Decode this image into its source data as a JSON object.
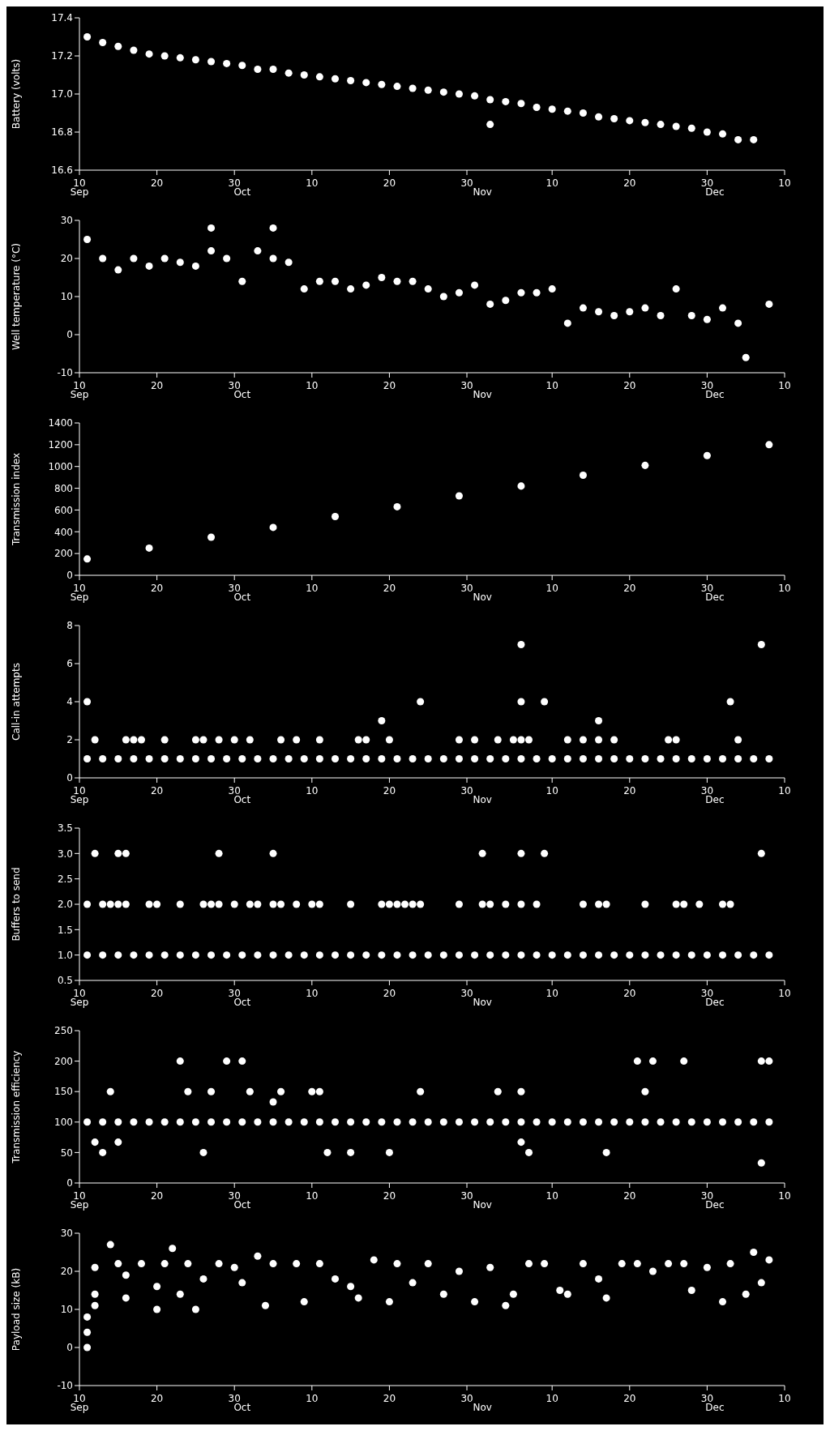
{
  "chart_data": [
    {
      "type": "scatter",
      "ylabel": "Battery (volts)",
      "marker": "circle",
      "xlim": [
        "--09-10",
        "--12-10"
      ],
      "xticks": [
        {
          "value": "--09-10",
          "label": "10"
        },
        {
          "value": "--09-20",
          "label": "20"
        },
        {
          "value": "--09-30",
          "label": "30"
        },
        {
          "value": "--10-10",
          "label": "10"
        },
        {
          "value": "--10-20",
          "label": "20"
        },
        {
          "value": "--10-30",
          "label": "30"
        },
        {
          "value": "--11-10",
          "label": "10"
        },
        {
          "value": "--11-20",
          "label": "20"
        },
        {
          "value": "--11-30",
          "label": "30"
        },
        {
          "value": "--12-10",
          "label": "10"
        }
      ],
      "x2lim": [
        "--09-10",
        "--12-10"
      ],
      "x2ticks": [
        {
          "value": "--09-10",
          "label": "Sep"
        },
        {
          "value": "--10-01",
          "label": "Oct"
        },
        {
          "value": "--11-01",
          "label": "Nov"
        },
        {
          "value": "--12-01",
          "label": "Dec"
        }
      ],
      "ylim": [
        16.6,
        17.4
      ],
      "yticks": [
        {
          "value": 16.6,
          "label": "16.6"
        },
        {
          "value": 16.8,
          "label": "16.8"
        },
        {
          "value": 17.0,
          "label": "17.0"
        },
        {
          "value": 17.2,
          "label": "17.2"
        },
        {
          "value": 17.4,
          "label": "17.4"
        }
      ],
      "series": [
        {
          "color": "#ffffff",
          "x": [
            "--09-11",
            "--09-13",
            "--09-15",
            "--09-17",
            "--09-19",
            "--09-21",
            "--09-23",
            "--09-25",
            "--09-27",
            "--09-29",
            "--10-01",
            "--10-03",
            "--10-05",
            "--10-07",
            "--10-09",
            "--10-11",
            "--10-13",
            "--10-15",
            "--10-17",
            "--10-19",
            "--10-21",
            "--10-23",
            "--10-25",
            "--10-27",
            "--10-29",
            "--10-31",
            "--11-02",
            "--11-02",
            "--11-04",
            "--11-06",
            "--11-08",
            "--11-10",
            "--11-12",
            "--11-14",
            "--11-16",
            "--11-18",
            "--11-20",
            "--11-22",
            "--11-24",
            "--11-26",
            "--11-28",
            "--11-30",
            "--12-02",
            "--12-04",
            "--12-06"
          ],
          "values": [
            17.3,
            17.27,
            17.25,
            17.23,
            17.21,
            17.2,
            17.19,
            17.18,
            17.17,
            17.16,
            17.15,
            17.13,
            17.13,
            17.11,
            17.1,
            17.09,
            17.08,
            17.07,
            17.06,
            17.05,
            17.04,
            17.03,
            17.02,
            17.01,
            17.0,
            16.99,
            16.97,
            16.84,
            16.96,
            16.95,
            16.93,
            16.92,
            16.91,
            16.9,
            16.88,
            16.87,
            16.86,
            16.85,
            16.84,
            16.83,
            16.82,
            16.8,
            16.79,
            16.76,
            16.76
          ]
        }
      ]
    },
    {
      "type": "scatter",
      "ylabel": "Well temperature (°C)",
      "marker": "circle",
      "xlim": [
        "--09-10",
        "--12-10"
      ],
      "xticks": [
        {
          "value": "--09-10",
          "label": "10"
        },
        {
          "value": "--09-20",
          "label": "20"
        },
        {
          "value": "--09-30",
          "label": "30"
        },
        {
          "value": "--10-10",
          "label": "10"
        },
        {
          "value": "--10-20",
          "label": "20"
        },
        {
          "value": "--10-30",
          "label": "30"
        },
        {
          "value": "--11-10",
          "label": "10"
        },
        {
          "value": "--11-20",
          "label": "20"
        },
        {
          "value": "--11-30",
          "label": "30"
        },
        {
          "value": "--12-10",
          "label": "10"
        }
      ],
      "x2lim": [
        "--09-10",
        "--12-10"
      ],
      "x2ticks": [
        {
          "value": "--09-10",
          "label": "Sep"
        },
        {
          "value": "--10-01",
          "label": "Oct"
        },
        {
          "value": "--11-01",
          "label": "Nov"
        },
        {
          "value": "--12-01",
          "label": "Dec"
        }
      ],
      "ylim": [
        -10,
        30
      ],
      "yticks": [
        -10,
        0,
        10,
        20,
        30
      ],
      "series": [
        {
          "color": "#ffffff",
          "x": [
            "--09-11",
            "--09-13",
            "--09-15",
            "--09-17",
            "--09-19",
            "--09-21",
            "--09-23",
            "--09-25",
            "--09-27",
            "--09-27",
            "--09-29",
            "--10-01",
            "--10-03",
            "--10-05",
            "--10-05",
            "--10-07",
            "--10-09",
            "--10-11",
            "--10-13",
            "--10-15",
            "--10-17",
            "--10-19",
            "--10-21",
            "--10-23",
            "--10-25",
            "--10-27",
            "--10-29",
            "--10-31",
            "--11-02",
            "--11-04",
            "--11-06",
            "--11-08",
            "--11-10",
            "--11-12",
            "--11-14",
            "--11-16",
            "--11-18",
            "--11-20",
            "--11-22",
            "--11-24",
            "--11-26",
            "--11-28",
            "--11-30",
            "--12-02",
            "--12-04",
            "--12-05",
            "--12-08"
          ],
          "values": [
            25,
            20,
            17,
            20,
            18,
            20,
            19,
            18,
            22,
            28,
            20,
            14,
            22,
            20,
            28,
            19,
            12,
            14,
            14,
            12,
            13,
            15,
            14,
            14,
            12,
            10,
            11,
            13,
            8,
            9,
            11,
            11,
            12,
            3,
            7,
            6,
            5,
            6,
            7,
            5,
            12,
            5,
            4,
            7,
            3,
            -6,
            8
          ]
        }
      ]
    },
    {
      "type": "scatter",
      "ylabel": "Transmission index",
      "marker": "circle",
      "xlim": [
        "--09-10",
        "--12-10"
      ],
      "xticks": [
        {
          "value": "--09-10",
          "label": "10"
        },
        {
          "value": "--09-20",
          "label": "20"
        },
        {
          "value": "--09-30",
          "label": "30"
        },
        {
          "value": "--10-10",
          "label": "10"
        },
        {
          "value": "--10-20",
          "label": "20"
        },
        {
          "value": "--10-30",
          "label": "30"
        },
        {
          "value": "--11-10",
          "label": "10"
        },
        {
          "value": "--11-20",
          "label": "20"
        },
        {
          "value": "--11-30",
          "label": "30"
        },
        {
          "value": "--12-10",
          "label": "10"
        }
      ],
      "x2lim": [
        "--09-10",
        "--12-10"
      ],
      "x2ticks": [
        {
          "value": "--09-10",
          "label": "Sep"
        },
        {
          "value": "--10-01",
          "label": "Oct"
        },
        {
          "value": "--11-01",
          "label": "Nov"
        },
        {
          "value": "--12-01",
          "label": "Dec"
        }
      ],
      "ylim": [
        0,
        1400
      ],
      "yticks": [
        0,
        200,
        400,
        600,
        800,
        1000,
        1200,
        1400
      ],
      "series": [
        {
          "color": "#ffffff",
          "x": [
            "--09-11",
            "--09-19",
            "--09-27",
            "--10-05",
            "--10-13",
            "--10-21",
            "--10-29",
            "--11-06",
            "--11-14",
            "--11-22",
            "--11-30",
            "--12-08"
          ],
          "values": [
            150,
            250,
            350,
            440,
            540,
            630,
            730,
            820,
            920,
            1010,
            1100,
            1200
          ]
        }
      ]
    },
    {
      "type": "scatter",
      "ylabel": "Call-in attempts",
      "marker": "circle",
      "xlim": [
        "--09-10",
        "--12-10"
      ],
      "xticks": [
        {
          "value": "--09-10",
          "label": "10"
        },
        {
          "value": "--09-20",
          "label": "20"
        },
        {
          "value": "--09-30",
          "label": "30"
        },
        {
          "value": "--10-10",
          "label": "10"
        },
        {
          "value": "--10-20",
          "label": "20"
        },
        {
          "value": "--10-30",
          "label": "30"
        },
        {
          "value": "--11-10",
          "label": "10"
        },
        {
          "value": "--11-20",
          "label": "20"
        },
        {
          "value": "--11-30",
          "label": "30"
        },
        {
          "value": "--12-10",
          "label": "10"
        }
      ],
      "x2lim": [
        "--09-10",
        "--12-10"
      ],
      "x2ticks": [
        {
          "value": "--09-10",
          "label": "Sep"
        },
        {
          "value": "--10-01",
          "label": "Oct"
        },
        {
          "value": "--11-01",
          "label": "Nov"
        },
        {
          "value": "--12-01",
          "label": "Dec"
        }
      ],
      "ylim": [
        0,
        8
      ],
      "yticks": [
        0,
        2,
        4,
        6,
        8
      ],
      "series": [
        {
          "color": "#ffffff",
          "x": [
            "--09-11",
            "--09-13",
            "--09-15",
            "--09-17",
            "--09-19",
            "--09-21",
            "--09-23",
            "--09-25",
            "--09-27",
            "--09-29",
            "--10-01",
            "--10-03",
            "--10-05",
            "--10-07",
            "--10-09",
            "--10-11",
            "--10-13",
            "--10-15",
            "--10-17",
            "--10-19",
            "--10-21",
            "--10-23",
            "--10-25",
            "--10-27",
            "--10-29",
            "--10-31",
            "--11-02",
            "--11-04",
            "--11-06",
            "--11-08",
            "--11-10",
            "--11-12",
            "--11-14",
            "--11-16",
            "--11-18",
            "--11-20",
            "--11-22",
            "--11-24",
            "--11-26",
            "--11-28",
            "--11-30",
            "--12-02",
            "--12-04",
            "--12-06",
            "--12-08"
          ],
          "values": [
            1,
            1,
            1,
            1,
            1,
            1,
            1,
            1,
            1,
            1,
            1,
            1,
            1,
            1,
            1,
            1,
            1,
            1,
            1,
            1,
            1,
            1,
            1,
            1,
            1,
            1,
            1,
            1,
            1,
            1,
            1,
            1,
            1,
            1,
            1,
            1,
            1,
            1,
            1,
            1,
            1,
            1,
            1,
            1,
            1
          ]
        },
        {
          "color": "#ffffff",
          "x": [
            "--09-11",
            "--09-12",
            "--09-16",
            "--09-17",
            "--09-18",
            "--09-21",
            "--09-25",
            "--09-26",
            "--09-28",
            "--09-30",
            "--10-02",
            "--10-06",
            "--10-08",
            "--10-11",
            "--10-16",
            "--10-17",
            "--10-19",
            "--10-20",
            "--10-24",
            "--10-29",
            "--10-31",
            "--11-03",
            "--11-05",
            "--11-06",
            "--11-06",
            "--11-06",
            "--11-07",
            "--11-09",
            "--11-12",
            "--11-14",
            "--11-16",
            "--11-16",
            "--11-18",
            "--11-25",
            "--11-26",
            "--12-03",
            "--12-04",
            "--12-07"
          ],
          "values": [
            4,
            2,
            2,
            2,
            2,
            2,
            2,
            2,
            2,
            2,
            2,
            2,
            2,
            2,
            2,
            2,
            3,
            2,
            4,
            2,
            2,
            2,
            2,
            7,
            4,
            2,
            2,
            4,
            2,
            2,
            3,
            2,
            2,
            2,
            2,
            4,
            2,
            7
          ]
        }
      ]
    },
    {
      "type": "scatter",
      "ylabel": "Buffers to send",
      "marker": "circle",
      "xlim": [
        "--09-10",
        "--12-10"
      ],
      "xticks": [
        {
          "value": "--09-10",
          "label": "10"
        },
        {
          "value": "--09-20",
          "label": "20"
        },
        {
          "value": "--09-30",
          "label": "30"
        },
        {
          "value": "--10-10",
          "label": "10"
        },
        {
          "value": "--10-20",
          "label": "20"
        },
        {
          "value": "--10-30",
          "label": "30"
        },
        {
          "value": "--11-10",
          "label": "10"
        },
        {
          "value": "--11-20",
          "label": "20"
        },
        {
          "value": "--11-30",
          "label": "30"
        },
        {
          "value": "--12-10",
          "label": "10"
        }
      ],
      "x2lim": [
        "--09-10",
        "--12-10"
      ],
      "x2ticks": [
        {
          "value": "--09-10",
          "label": "Sep"
        },
        {
          "value": "--10-01",
          "label": "Oct"
        },
        {
          "value": "--11-01",
          "label": "Nov"
        },
        {
          "value": "--12-01",
          "label": "Dec"
        }
      ],
      "ylim": [
        0.5,
        3.5
      ],
      "yticks": [
        {
          "value": 0.5,
          "label": "0.5"
        },
        {
          "value": 1,
          "label": "1.0"
        },
        {
          "value": 1.5,
          "label": "1.5"
        },
        {
          "value": 2,
          "label": "2.0"
        },
        {
          "value": 2.5,
          "label": "2.5"
        },
        {
          "value": 3,
          "label": "3.0"
        },
        {
          "value": 3.5,
          "label": "3.5"
        }
      ],
      "series": [
        {
          "color": "#ffffff",
          "x": [
            "--09-11",
            "--09-13",
            "--09-15",
            "--09-17",
            "--09-19",
            "--09-21",
            "--09-23",
            "--09-25",
            "--09-27",
            "--09-29",
            "--10-01",
            "--10-03",
            "--10-05",
            "--10-07",
            "--10-09",
            "--10-11",
            "--10-13",
            "--10-15",
            "--10-17",
            "--10-19",
            "--10-21",
            "--10-23",
            "--10-25",
            "--10-27",
            "--10-29",
            "--10-31",
            "--11-02",
            "--11-04",
            "--11-06",
            "--11-08",
            "--11-10",
            "--11-12",
            "--11-14",
            "--11-16",
            "--11-18",
            "--11-20",
            "--11-22",
            "--11-24",
            "--11-26",
            "--11-28",
            "--11-30",
            "--12-02",
            "--12-04",
            "--12-06",
            "--12-08"
          ],
          "values": [
            1,
            1,
            1,
            1,
            1,
            1,
            1,
            1,
            1,
            1,
            1,
            1,
            1,
            1,
            1,
            1,
            1,
            1,
            1,
            1,
            1,
            1,
            1,
            1,
            1,
            1,
            1,
            1,
            1,
            1,
            1,
            1,
            1,
            1,
            1,
            1,
            1,
            1,
            1,
            1,
            1,
            1,
            1,
            1,
            1
          ]
        },
        {
          "color": "#ffffff",
          "x": [
            "--09-11",
            "--09-12",
            "--09-13",
            "--09-14",
            "--09-15",
            "--09-15",
            "--09-16",
            "--09-16",
            "--09-19",
            "--09-20",
            "--09-23",
            "--09-26",
            "--09-27",
            "--09-28",
            "--09-28",
            "--09-30",
            "--10-02",
            "--10-03",
            "--10-05",
            "--10-05",
            "--10-06",
            "--10-08",
            "--10-10",
            "--10-11",
            "--10-15",
            "--10-19",
            "--10-20",
            "--10-21",
            "--10-22",
            "--10-23",
            "--10-24",
            "--10-29",
            "--11-01",
            "--11-01",
            "--11-02",
            "--11-04",
            "--11-06",
            "--11-06",
            "--11-08",
            "--11-09",
            "--11-14",
            "--11-16",
            "--11-17",
            "--11-22",
            "--11-26",
            "--11-27",
            "--11-29",
            "--12-02",
            "--12-03",
            "--12-07"
          ],
          "values": [
            2,
            3,
            2,
            2,
            2,
            3,
            2,
            3,
            2,
            2,
            2,
            2,
            2,
            2,
            3,
            2,
            2,
            2,
            2,
            3,
            2,
            2,
            2,
            2,
            2,
            2,
            2,
            2,
            2,
            2,
            2,
            2,
            2,
            3,
            2,
            2,
            2,
            3,
            2,
            3,
            2,
            2,
            2,
            2,
            2,
            2,
            2,
            2,
            2,
            3
          ]
        }
      ]
    },
    {
      "type": "scatter",
      "ylabel": "Transmission efficiency",
      "marker": "circle",
      "xlim": [
        "--09-10",
        "--12-10"
      ],
      "xticks": [
        {
          "value": "--09-10",
          "label": "10"
        },
        {
          "value": "--09-20",
          "label": "20"
        },
        {
          "value": "--09-30",
          "label": "30"
        },
        {
          "value": "--10-10",
          "label": "10"
        },
        {
          "value": "--10-20",
          "label": "20"
        },
        {
          "value": "--10-30",
          "label": "30"
        },
        {
          "value": "--11-10",
          "label": "10"
        },
        {
          "value": "--11-20",
          "label": "20"
        },
        {
          "value": "--11-30",
          "label": "30"
        },
        {
          "value": "--12-10",
          "label": "10"
        }
      ],
      "x2lim": [
        "--09-10",
        "--12-10"
      ],
      "x2ticks": [
        {
          "value": "--09-10",
          "label": "Sep"
        },
        {
          "value": "--10-01",
          "label": "Oct"
        },
        {
          "value": "--11-01",
          "label": "Nov"
        },
        {
          "value": "--12-01",
          "label": "Dec"
        }
      ],
      "ylim": [
        0,
        250
      ],
      "yticks": [
        0,
        50,
        100,
        150,
        200,
        250
      ],
      "series": [
        {
          "color": "#ffffff",
          "x": [
            "--09-11",
            "--09-13",
            "--09-15",
            "--09-17",
            "--09-19",
            "--09-21",
            "--09-23",
            "--09-25",
            "--09-27",
            "--09-29",
            "--10-01",
            "--10-03",
            "--10-05",
            "--10-07",
            "--10-09",
            "--10-11",
            "--10-13",
            "--10-15",
            "--10-17",
            "--10-19",
            "--10-21",
            "--10-23",
            "--10-25",
            "--10-27",
            "--10-29",
            "--10-31",
            "--11-02",
            "--11-04",
            "--11-06",
            "--11-08",
            "--11-10",
            "--11-12",
            "--11-14",
            "--11-16",
            "--11-18",
            "--11-20",
            "--11-22",
            "--11-24",
            "--11-26",
            "--11-28",
            "--11-30",
            "--12-02",
            "--12-04",
            "--12-06",
            "--12-08"
          ],
          "values": [
            100,
            100,
            100,
            100,
            100,
            100,
            100,
            100,
            100,
            100,
            100,
            100,
            100,
            100,
            100,
            100,
            100,
            100,
            100,
            100,
            100,
            100,
            100,
            100,
            100,
            100,
            100,
            100,
            100,
            100,
            100,
            100,
            100,
            100,
            100,
            100,
            100,
            100,
            100,
            100,
            100,
            100,
            100,
            100,
            100
          ]
        },
        {
          "color": "#ffffff",
          "x": [
            "--09-12",
            "--09-13",
            "--09-14",
            "--09-15",
            "--09-23",
            "--09-24",
            "--09-26",
            "--09-27",
            "--09-29",
            "--10-01",
            "--10-02",
            "--10-05",
            "--10-06",
            "--10-10",
            "--10-11",
            "--10-12",
            "--10-15",
            "--10-20",
            "--10-24",
            "--11-03",
            "--11-06",
            "--11-06",
            "--11-07",
            "--11-17",
            "--11-21",
            "--11-22",
            "--11-23",
            "--11-27",
            "--12-07",
            "--12-07",
            "--12-08"
          ],
          "values": [
            67,
            50,
            150,
            67,
            200,
            150,
            50,
            150,
            200,
            200,
            150,
            133,
            150,
            150,
            150,
            50,
            50,
            50,
            150,
            150,
            150,
            67,
            50,
            50,
            200,
            150,
            200,
            200,
            200,
            33,
            200
          ]
        }
      ]
    },
    {
      "type": "scatter",
      "ylabel": "Payload size (kB)",
      "marker": "circle",
      "xlim": [
        "--09-10",
        "--12-10"
      ],
      "xticks": [
        {
          "value": "--09-10",
          "label": "10"
        },
        {
          "value": "--09-20",
          "label": "20"
        },
        {
          "value": "--09-30",
          "label": "30"
        },
        {
          "value": "--10-10",
          "label": "10"
        },
        {
          "value": "--10-20",
          "label": "20"
        },
        {
          "value": "--10-30",
          "label": "30"
        },
        {
          "value": "--11-10",
          "label": "10"
        },
        {
          "value": "--11-20",
          "label": "20"
        },
        {
          "value": "--11-30",
          "label": "30"
        },
        {
          "value": "--12-10",
          "label": "10"
        }
      ],
      "x2lim": [
        "--09-10",
        "--12-10"
      ],
      "x2ticks": [
        {
          "value": "--09-10",
          "label": "Sep"
        },
        {
          "value": "--10-01",
          "label": "Oct"
        },
        {
          "value": "--11-01",
          "label": "Nov"
        },
        {
          "value": "--12-01",
          "label": "Dec"
        }
      ],
      "ylim": [
        -10,
        30
      ],
      "yticks": [
        -10,
        0,
        10,
        20,
        30
      ],
      "series": [
        {
          "color": "#ffffff",
          "x": [
            "--09-11",
            "--09-11",
            "--09-11",
            "--09-12",
            "--09-12",
            "--09-12",
            "--09-14",
            "--09-15",
            "--09-16",
            "--09-16",
            "--09-18",
            "--09-20",
            "--09-20",
            "--09-21",
            "--09-22",
            "--09-23",
            "--09-24",
            "--09-25",
            "--09-26",
            "--09-28",
            "--09-30",
            "--10-01",
            "--10-03",
            "--10-04",
            "--10-05",
            "--10-08",
            "--10-09",
            "--10-11",
            "--10-13",
            "--10-15",
            "--10-16",
            "--10-18",
            "--10-20",
            "--10-21",
            "--10-23",
            "--10-25",
            "--10-27",
            "--10-29",
            "--10-31",
            "--11-02",
            "--11-04",
            "--11-05",
            "--11-07",
            "--11-09",
            "--11-11",
            "--11-12",
            "--11-14",
            "--11-16",
            "--11-17",
            "--11-19",
            "--11-21",
            "--11-23",
            "--11-25",
            "--11-27",
            "--11-28",
            "--11-30",
            "--12-02",
            "--12-03",
            "--12-05",
            "--12-06",
            "--12-07",
            "--12-08"
          ],
          "values": [
            0,
            4,
            8,
            11,
            14,
            21,
            27,
            22,
            19,
            13,
            22,
            10,
            16,
            22,
            26,
            14,
            22,
            10,
            18,
            22,
            21,
            17,
            24,
            11,
            22,
            22,
            12,
            22,
            18,
            16,
            13,
            23,
            12,
            22,
            17,
            22,
            14,
            20,
            12,
            21,
            11,
            14,
            22,
            22,
            15,
            14,
            22,
            18,
            13,
            22,
            22,
            20,
            22,
            22,
            15,
            21,
            12,
            22,
            14,
            25,
            17,
            23
          ]
        }
      ]
    }
  ]
}
